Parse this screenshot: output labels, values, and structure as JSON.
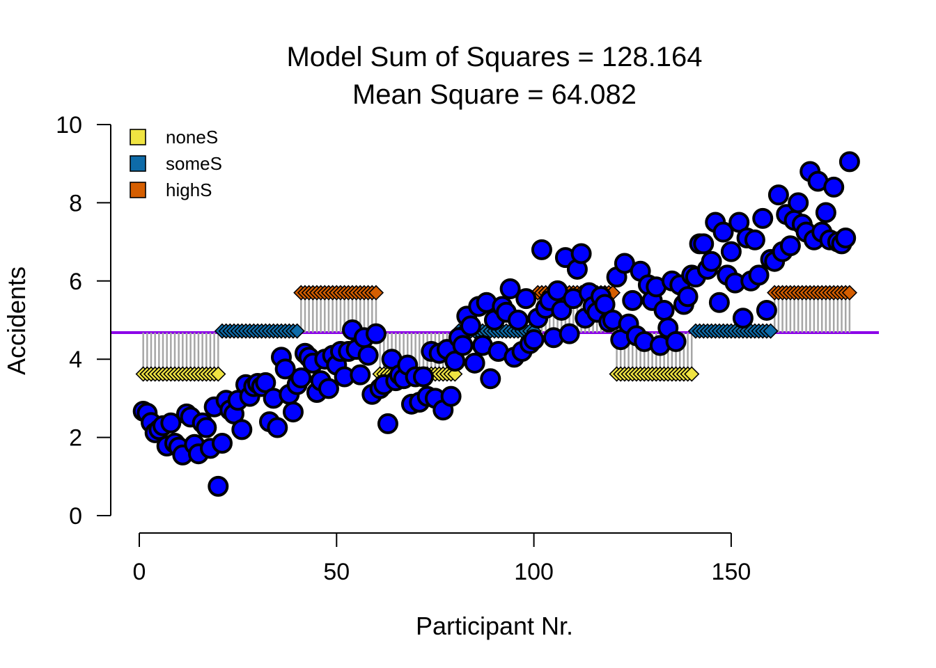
{
  "chart_data": {
    "type": "scatter",
    "title": "Model Sum of Squares = 128.164",
    "subtitle": "Mean Square = 64.082",
    "xlabel": "Participant Nr.",
    "ylabel": "Accidents",
    "xlim": [
      0,
      190
    ],
    "ylim": [
      0,
      10
    ],
    "xticks": [
      0,
      50,
      100,
      150
    ],
    "yticks": [
      0,
      2,
      4,
      6,
      8,
      10
    ],
    "grand_mean": 4.68,
    "grand_mean_color": "#8B00E8",
    "point_color": "#0000FF",
    "segment_color": "#A6A6A6",
    "legend_position": "top-left",
    "groups": [
      {
        "name": "noneS",
        "color": "#F0E442",
        "mean": 3.62
      },
      {
        "name": "someS",
        "color": "#0E6BA8",
        "mean": 4.72
      },
      {
        "name": "highS",
        "color": "#D55E00",
        "mean": 5.7
      }
    ],
    "blocks": [
      {
        "group": 0,
        "start": 1,
        "end": 20
      },
      {
        "group": 1,
        "start": 21,
        "end": 40
      },
      {
        "group": 2,
        "start": 41,
        "end": 60
      },
      {
        "group": 0,
        "start": 61,
        "end": 80
      },
      {
        "group": 1,
        "start": 81,
        "end": 100
      },
      {
        "group": 2,
        "start": 101,
        "end": 120
      },
      {
        "group": 0,
        "start": 121,
        "end": 140
      },
      {
        "group": 1,
        "start": 141,
        "end": 160
      },
      {
        "group": 2,
        "start": 161,
        "end": 180
      }
    ],
    "points": {
      "x": [
        1,
        2,
        3,
        4,
        5,
        6,
        7,
        8,
        9,
        10,
        11,
        12,
        13,
        14,
        15,
        16,
        17,
        18,
        19,
        20,
        21,
        22,
        23,
        24,
        25,
        26,
        27,
        28,
        29,
        30,
        31,
        32,
        33,
        34,
        35,
        36,
        37,
        38,
        39,
        40,
        41,
        42,
        43,
        44,
        45,
        46,
        47,
        48,
        49,
        50,
        51,
        52,
        53,
        54,
        55,
        56,
        57,
        58,
        59,
        60,
        61,
        62,
        63,
        64,
        65,
        66,
        67,
        68,
        69,
        70,
        71,
        72,
        73,
        74,
        75,
        76,
        77,
        78,
        79,
        80,
        81,
        82,
        83,
        84,
        85,
        86,
        87,
        88,
        89,
        90,
        91,
        92,
        93,
        94,
        95,
        96,
        97,
        98,
        99,
        100,
        101,
        102,
        103,
        104,
        105,
        106,
        107,
        108,
        109,
        110,
        111,
        112,
        113,
        114,
        115,
        116,
        117,
        118,
        119,
        120,
        121,
        122,
        123,
        124,
        125,
        126,
        127,
        128,
        129,
        130,
        131,
        132,
        133,
        134,
        135,
        136,
        137,
        138,
        139,
        140,
        141,
        142,
        143,
        144,
        145,
        146,
        147,
        148,
        149,
        150,
        151,
        152,
        153,
        154,
        155,
        156,
        157,
        158,
        159,
        160,
        161,
        162,
        163,
        164,
        165,
        166,
        167,
        168,
        169,
        170,
        171,
        172,
        173,
        174,
        175,
        176,
        177,
        178,
        179,
        180
      ],
      "y": [
        2.67,
        2.62,
        2.38,
        2.12,
        2.2,
        2.3,
        1.78,
        2.37,
        1.85,
        1.75,
        1.55,
        2.6,
        2.52,
        1.82,
        1.58,
        2.37,
        2.25,
        1.72,
        2.78,
        0.75,
        1.85,
        2.95,
        2.7,
        2.6,
        2.95,
        2.2,
        3.35,
        3.05,
        3.3,
        3.38,
        3.3,
        3.4,
        2.4,
        3.0,
        2.25,
        4.05,
        3.75,
        3.1,
        2.65,
        3.35,
        3.52,
        4.15,
        4.05,
        3.9,
        3.15,
        3.45,
        4.0,
        3.25,
        4.1,
        3.85,
        4.2,
        3.55,
        4.2,
        4.75,
        4.25,
        3.6,
        4.55,
        4.1,
        3.1,
        4.65,
        3.25,
        3.35,
        2.35,
        4.0,
        3.45,
        3.6,
        3.5,
        3.85,
        2.85,
        3.55,
        2.9,
        3.55,
        3.05,
        4.2,
        3.0,
        4.15,
        2.7,
        4.25,
        3.05,
        3.95,
        4.55,
        4.35,
        5.1,
        4.85,
        3.9,
        5.35,
        4.35,
        5.45,
        3.5,
        5.0,
        4.2,
        5.35,
        5.2,
        5.8,
        4.05,
        5.0,
        4.2,
        5.55,
        4.4,
        4.5,
        5.05,
        6.8,
        5.3,
        5.5,
        4.55,
        5.75,
        5.25,
        6.6,
        4.65,
        5.55,
        6.3,
        6.7,
        5.05,
        5.7,
        5.35,
        5.2,
        5.6,
        5.4,
        4.95,
        5.0,
        6.1,
        4.5,
        6.45,
        4.9,
        5.5,
        4.6,
        6.25,
        4.45,
        5.9,
        5.5,
        5.85,
        4.35,
        5.25,
        4.8,
        6.0,
        4.45,
        5.9,
        5.4,
        5.6,
        6.15,
        6.1,
        6.95,
        6.95,
        6.3,
        6.5,
        7.5,
        5.45,
        7.25,
        6.15,
        6.75,
        5.95,
        7.5,
        5.05,
        7.1,
        6.0,
        7.05,
        6.15,
        7.6,
        5.25,
        6.55,
        6.5,
        8.2,
        6.75,
        7.7,
        6.9,
        7.55,
        8.0,
        7.45,
        7.25,
        8.8,
        7.05,
        8.55,
        7.25,
        7.75,
        7.05,
        8.4,
        7.0,
        6.95,
        7.1,
        9.05
      ]
    },
    "legend_entries": [
      "noneS",
      "someS",
      "highS"
    ]
  }
}
